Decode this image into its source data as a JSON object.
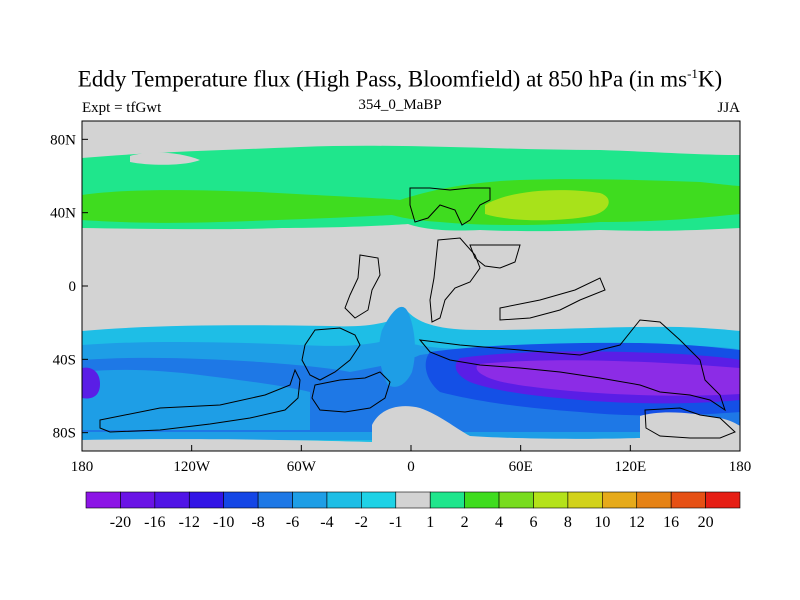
{
  "title": {
    "main": "Eddy Temperature flux (High Pass, Bloomfield) at 850 hPa (in ms",
    "sup": "-1",
    "tail": "K)"
  },
  "subtitle_left": "Expt = tfGwt",
  "subtitle_center": "354_0_MaBP",
  "subtitle_right": "JJA",
  "colors": {
    "grey": "#d3d3d3",
    "green_light": "#1fe68c",
    "green": "#3fdc1f",
    "yellowgreen": "#a8e21a",
    "cyan": "#1ebee6",
    "blue1": "#1e9ee6",
    "blue2": "#1e78e6",
    "blue3": "#1450e6",
    "purple1": "#5a1ee6",
    "purple2": "#8c2ce6"
  },
  "chart_data": {
    "type": "heatmap",
    "x_ticks": [
      "180",
      "120W",
      "60W",
      "0",
      "60E",
      "120E",
      "180"
    ],
    "y_ticks": [
      "80N",
      "40N",
      "0",
      "40S",
      "80S"
    ],
    "xlim": [
      -180,
      180
    ],
    "ylim": [
      -90,
      90
    ],
    "levels": [
      "-20",
      "-16",
      "-12",
      "-10",
      "-8",
      "-6",
      "-4",
      "-2",
      "-1",
      "1",
      "2",
      "4",
      "6",
      "8",
      "10",
      "12",
      "16",
      "20"
    ],
    "colorbar": [
      "#8c14e6",
      "#6a14e6",
      "#5014e6",
      "#3214e6",
      "#1446e6",
      "#1e78e6",
      "#1e9ee6",
      "#1ebee6",
      "#1ed2e6",
      "#d3d3d3",
      "#1fe68c",
      "#3fdc1f",
      "#78dc1f",
      "#b4e21a",
      "#d2d21a",
      "#e6aa1a",
      "#e68214",
      "#e65014",
      "#e61e14"
    ]
  }
}
